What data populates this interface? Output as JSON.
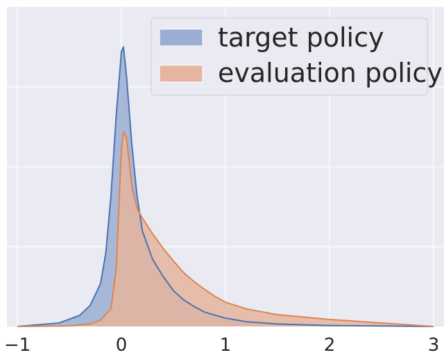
{
  "chart_data": {
    "type": "area",
    "title": "",
    "xlabel": "",
    "ylabel": "",
    "xlim": [
      -1.1,
      3.1
    ],
    "ylim": [
      0,
      1
    ],
    "x_ticks": [
      -1,
      0,
      1,
      2,
      3
    ],
    "x_tick_labels": [
      "−1",
      "0",
      "1",
      "2",
      "3"
    ],
    "y_tick_labels_shown": false,
    "grid": true,
    "legend_position": "top-right",
    "series": [
      {
        "name": "target policy",
        "color": "#4c72b0",
        "fill_color": "#9aaed3",
        "x": [
          -1.0,
          -0.6,
          -0.4,
          -0.3,
          -0.2,
          -0.15,
          -0.1,
          -0.05,
          0.0,
          0.02,
          0.05,
          0.1,
          0.15,
          0.2,
          0.3,
          0.4,
          0.5,
          0.6,
          0.7,
          0.8,
          1.0,
          1.2,
          1.5,
          2.0,
          2.5,
          3.0
        ],
        "y": [
          0.0,
          0.011,
          0.035,
          0.066,
          0.135,
          0.23,
          0.41,
          0.66,
          0.86,
          0.875,
          0.78,
          0.57,
          0.41,
          0.3,
          0.21,
          0.157,
          0.112,
          0.083,
          0.062,
          0.045,
          0.026,
          0.015,
          0.008,
          0.003,
          0.0015,
          0.0
        ]
      },
      {
        "name": "evaluation policy",
        "color": "#dd8452",
        "fill_color": "#e5b59f",
        "x": [
          -1.0,
          -0.5,
          -0.3,
          -0.2,
          -0.1,
          -0.05,
          0.0,
          0.02,
          0.05,
          0.1,
          0.15,
          0.2,
          0.3,
          0.4,
          0.5,
          0.6,
          0.7,
          0.8,
          0.9,
          1.0,
          1.2,
          1.5,
          2.0,
          2.5,
          3.0
        ],
        "y": [
          0.0,
          0.002,
          0.008,
          0.02,
          0.056,
          0.18,
          0.555,
          0.61,
          0.59,
          0.44,
          0.37,
          0.34,
          0.29,
          0.245,
          0.205,
          0.168,
          0.14,
          0.116,
          0.094,
          0.076,
          0.055,
          0.037,
          0.022,
          0.011,
          0.0
        ]
      }
    ]
  }
}
